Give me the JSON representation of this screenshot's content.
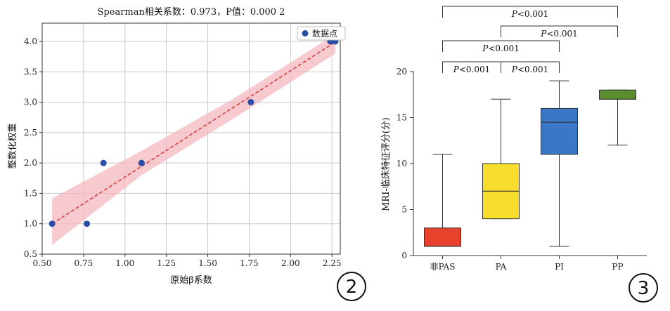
{
  "left_chart": {
    "title": "Spearman相关系数：0.973，P值：0.000 2",
    "xlabel": "原始β系数",
    "ylabel": "整数化权重",
    "legend_label": "数据点",
    "badge": "2",
    "colors": {
      "point": "#2a4ea6",
      "line": "#d94040",
      "band": "#f4b8bf"
    }
  },
  "right_chart": {
    "ylabel": "MRI-临床特征评分(分)",
    "badge": "3",
    "significance": [
      {
        "text": "P<0.001",
        "from": 0,
        "to": 3
      },
      {
        "text": "P<0.001",
        "from": 1,
        "to": 3
      },
      {
        "text": "P<0.001",
        "from": 0,
        "to": 2
      },
      {
        "text": "P<0.001",
        "from": 0,
        "to": 1
      },
      {
        "text": "P<0.001",
        "from": 1,
        "to": 2
      }
    ]
  },
  "chart_data": [
    {
      "type": "scatter",
      "title": "Spearman相关系数：0.973，P值：0.000 2",
      "xlabel": "原始β系数",
      "ylabel": "整数化权重",
      "xlim": [
        0.5,
        2.3
      ],
      "ylim": [
        0.5,
        4.3
      ],
      "xticks": [
        0.5,
        0.75,
        1.0,
        1.25,
        1.5,
        1.75,
        2.0,
        2.25
      ],
      "xtick_labels": [
        "0.50",
        "0.75",
        "1.00",
        "1.25",
        "1.50",
        "1.75",
        "2.00",
        "2.25"
      ],
      "yticks": [
        0.5,
        1.0,
        1.5,
        2.0,
        2.5,
        3.0,
        3.5,
        4.0
      ],
      "ytick_labels": [
        "0.5",
        "1.0",
        "1.5",
        "2.0",
        "2.5",
        "3.0",
        "3.5",
        "4.0"
      ],
      "grid": true,
      "legend_placement": "top-right",
      "series": [
        {
          "name": "数据点",
          "x": [
            0.56,
            0.77,
            0.87,
            1.1,
            1.76,
            2.24,
            2.27
          ],
          "y": [
            1.0,
            1.0,
            2.0,
            2.0,
            3.0,
            4.0,
            4.0
          ]
        }
      ],
      "fit_line": {
        "x": [
          0.56,
          2.27
        ],
        "y": [
          1.0,
          3.99
        ]
      },
      "confidence_band": {
        "x": [
          0.56,
          1.1,
          1.65,
          2.27
        ],
        "lower": [
          0.65,
          1.8,
          2.72,
          3.8
        ],
        "upper": [
          1.42,
          2.2,
          3.05,
          4.12
        ]
      }
    },
    {
      "type": "box",
      "ylabel": "MRI-临床特征评分(分)",
      "ylim": [
        0,
        20
      ],
      "yticks": [
        0,
        5,
        10,
        15,
        20
      ],
      "ytick_labels": [
        "0",
        "5",
        "10",
        "15",
        "20"
      ],
      "grid": false,
      "categories": [
        "非PAS",
        "PA",
        "PI",
        "PP"
      ],
      "colors": [
        "#e8412c",
        "#f7dd2e",
        "#3a77c4",
        "#5b8f2e"
      ],
      "boxes": [
        {
          "min": 1,
          "q1": 1,
          "median": 1,
          "q3": 3,
          "max": 11
        },
        {
          "min": 4,
          "q1": 4,
          "median": 7,
          "q3": 10,
          "max": 17
        },
        {
          "min": 1,
          "q1": 11,
          "median": 14.5,
          "q3": 16,
          "max": 19
        },
        {
          "min": 12,
          "q1": 17,
          "median": 17,
          "q3": 18,
          "max": 18
        }
      ]
    }
  ]
}
